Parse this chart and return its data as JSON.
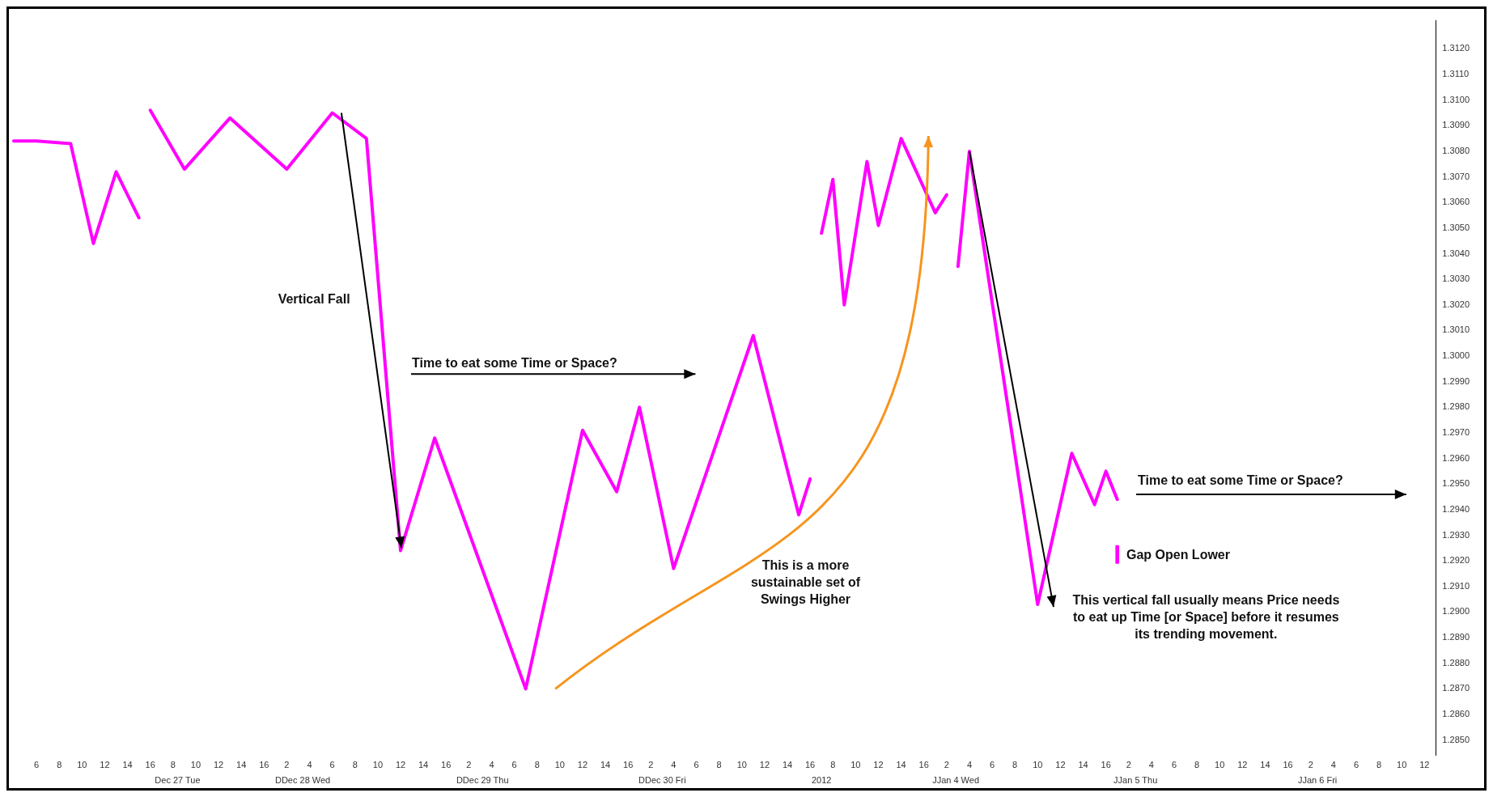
{
  "chart_data": {
    "type": "line",
    "categories": [
      null,
      null,
      "6",
      null,
      "8",
      null,
      "10",
      null,
      "12",
      null,
      "14",
      null,
      "16",
      null,
      "8",
      null,
      "10",
      null,
      "12",
      null,
      "14",
      null,
      "16",
      null,
      "2",
      null,
      "4",
      null,
      "6",
      null,
      "8",
      null,
      "10",
      null,
      "12",
      null,
      "14",
      null,
      "16",
      null,
      "2",
      null,
      "4",
      null,
      "6",
      null,
      "8",
      null,
      "10",
      null,
      "12",
      null,
      "14",
      null,
      "16",
      null,
      "2",
      null,
      "4",
      null,
      "6",
      null,
      "8",
      null,
      "10",
      null,
      "12",
      null,
      "14",
      null,
      "16",
      null,
      "8",
      null,
      "10",
      null,
      "12",
      null,
      "14",
      null,
      "16",
      null,
      "2",
      null,
      "4",
      null,
      "6",
      null,
      "8",
      null,
      "10",
      null,
      "12",
      null,
      "14",
      null,
      "16",
      null,
      "2",
      null,
      "4",
      null,
      "6",
      null,
      "8",
      null,
      "10",
      null,
      "12",
      null,
      "14",
      null,
      "16",
      null,
      "2",
      null,
      "4",
      null,
      "6",
      null,
      "8",
      null,
      "10",
      null,
      "12",
      null
    ],
    "series": [
      {
        "color": "#ff00ff",
        "values": [
          1.3084,
          null,
          1.3084,
          null,
          null,
          1.3083,
          null,
          1.3044,
          null,
          1.3072,
          null,
          1.3054,
          null,
          null,
          null,
          null,
          null,
          null,
          null,
          null,
          null,
          null,
          null,
          null,
          null,
          null,
          null,
          null,
          null,
          null,
          null,
          null,
          null,
          null,
          null,
          null,
          null,
          null,
          null,
          null,
          null,
          null,
          null,
          null,
          null,
          null,
          null,
          null,
          null,
          null,
          null,
          null,
          null,
          null,
          null,
          null,
          null,
          null,
          null,
          null,
          null,
          null,
          null,
          null,
          null,
          null,
          null,
          null,
          null,
          null,
          null,
          null,
          null,
          null,
          null,
          null,
          null,
          null,
          null,
          null,
          null,
          null,
          null,
          null,
          null,
          null,
          null,
          null,
          null,
          null,
          null,
          null,
          null,
          null,
          null,
          null,
          null,
          null,
          null,
          null,
          null,
          null,
          null,
          null,
          null,
          null,
          null,
          null,
          null,
          null,
          null,
          null,
          null,
          null,
          null,
          null,
          null,
          null,
          null,
          null,
          null,
          null,
          null,
          null,
          null,
          null
        ]
      },
      {
        "color": "#ff00ff",
        "values": [
          null,
          null,
          null,
          null,
          null,
          null,
          null,
          null,
          null,
          null,
          null,
          null,
          1.3096,
          null,
          null,
          1.3073,
          null,
          null,
          null,
          1.3093,
          null,
          null,
          null,
          null,
          1.3073,
          null,
          null,
          null,
          1.3095,
          null,
          null,
          1.3085,
          null,
          null,
          1.2924,
          null,
          null,
          1.2968,
          null,
          null,
          null,
          null,
          null,
          null,
          null,
          1.287,
          null,
          null,
          null,
          null,
          1.2971,
          null,
          null,
          1.2947,
          null,
          1.298,
          null,
          null,
          1.2917,
          null,
          null,
          null,
          null,
          null,
          null,
          1.3008,
          null,
          null,
          null,
          1.2938,
          1.2952,
          null,
          null,
          null,
          null,
          null,
          null,
          null,
          null,
          null,
          null,
          null,
          null,
          null,
          null,
          null,
          null,
          null,
          null,
          null,
          null,
          null,
          null,
          null,
          null,
          null,
          null,
          null,
          null,
          null,
          null,
          null,
          null,
          null,
          null,
          null,
          null,
          null,
          null,
          null,
          null,
          null,
          null,
          null,
          null,
          null,
          null,
          null,
          null,
          null,
          null,
          null,
          null,
          null,
          null,
          null
        ]
      },
      {
        "color": "#ff00ff",
        "values": [
          null,
          null,
          null,
          null,
          null,
          null,
          null,
          null,
          null,
          null,
          null,
          null,
          null,
          null,
          null,
          null,
          null,
          null,
          null,
          null,
          null,
          null,
          null,
          null,
          null,
          null,
          null,
          null,
          null,
          null,
          null,
          null,
          null,
          null,
          null,
          null,
          null,
          null,
          null,
          null,
          null,
          null,
          null,
          null,
          null,
          null,
          null,
          null,
          null,
          null,
          null,
          null,
          null,
          null,
          null,
          null,
          null,
          null,
          null,
          null,
          null,
          null,
          null,
          null,
          null,
          null,
          null,
          null,
          null,
          null,
          null,
          1.3048,
          1.3069,
          1.302,
          null,
          1.3076,
          1.3051,
          null,
          1.3085,
          null,
          null,
          1.3056,
          1.3063,
          null,
          null,
          null,
          null,
          null,
          null,
          null,
          null,
          null,
          null,
          null,
          null,
          null,
          null,
          null,
          null,
          null,
          null,
          null,
          null,
          null,
          null,
          null,
          null,
          null,
          null,
          null,
          null,
          null,
          null,
          null,
          null,
          null,
          null,
          null,
          null,
          null,
          null,
          null,
          null,
          null,
          null,
          null
        ]
      },
      {
        "color": "#ff00ff",
        "values": [
          null,
          null,
          null,
          null,
          null,
          null,
          null,
          null,
          null,
          null,
          null,
          null,
          null,
          null,
          null,
          null,
          null,
          null,
          null,
          null,
          null,
          null,
          null,
          null,
          null,
          null,
          null,
          null,
          null,
          null,
          null,
          null,
          null,
          null,
          null,
          null,
          null,
          null,
          null,
          null,
          null,
          null,
          null,
          null,
          null,
          null,
          null,
          null,
          null,
          null,
          null,
          null,
          null,
          null,
          null,
          null,
          null,
          null,
          null,
          null,
          null,
          null,
          null,
          null,
          null,
          null,
          null,
          null,
          null,
          null,
          null,
          null,
          null,
          null,
          null,
          null,
          null,
          null,
          null,
          null,
          null,
          null,
          null,
          1.3035,
          1.308,
          null,
          null,
          null,
          null,
          null,
          1.2903,
          null,
          null,
          1.2962,
          null,
          1.2942,
          1.2955,
          1.2944,
          null,
          null,
          null,
          null,
          null,
          null,
          null,
          null,
          null,
          null,
          null,
          null,
          null,
          null,
          null,
          null,
          null,
          null,
          null,
          null,
          null,
          null,
          null,
          null,
          null,
          null,
          null,
          null
        ]
      },
      {
        "type": "bar",
        "color": "#ff00ff",
        "values": [
          null,
          null,
          null,
          null,
          null,
          null,
          null,
          null,
          null,
          null,
          null,
          null,
          null,
          null,
          null,
          null,
          null,
          null,
          null,
          null,
          null,
          null,
          null,
          null,
          null,
          null,
          null,
          null,
          null,
          null,
          null,
          null,
          null,
          null,
          null,
          null,
          null,
          null,
          null,
          null,
          null,
          null,
          null,
          null,
          null,
          null,
          null,
          null,
          null,
          null,
          null,
          null,
          null,
          null,
          null,
          null,
          null,
          null,
          null,
          null,
          null,
          null,
          null,
          null,
          null,
          null,
          null,
          null,
          null,
          null,
          null,
          null,
          null,
          null,
          null,
          null,
          null,
          null,
          null,
          null,
          null,
          null,
          null,
          null,
          null,
          null,
          null,
          null,
          null,
          null,
          null,
          null,
          null,
          null,
          null,
          null,
          null,
          0.0007,
          null,
          null,
          null,
          null,
          null,
          null,
          null,
          null,
          null,
          null,
          null,
          null,
          null,
          null,
          null,
          null,
          null,
          null,
          null,
          null,
          null,
          null,
          null,
          null,
          null,
          null,
          null,
          null
        ],
        "base": [
          null,
          null,
          null,
          null,
          null,
          null,
          null,
          null,
          null,
          null,
          null,
          null,
          null,
          null,
          null,
          null,
          null,
          null,
          null,
          null,
          null,
          null,
          null,
          null,
          null,
          null,
          null,
          null,
          null,
          null,
          null,
          null,
          null,
          null,
          null,
          null,
          null,
          null,
          null,
          null,
          null,
          null,
          null,
          null,
          null,
          null,
          null,
          null,
          null,
          null,
          null,
          null,
          null,
          null,
          null,
          null,
          null,
          null,
          null,
          null,
          null,
          null,
          null,
          null,
          null,
          null,
          null,
          null,
          null,
          null,
          null,
          null,
          null,
          null,
          null,
          null,
          null,
          null,
          null,
          null,
          null,
          null,
          null,
          null,
          null,
          null,
          null,
          null,
          null,
          null,
          null,
          null,
          null,
          null,
          null,
          null,
          null,
          1.2919,
          null,
          null,
          null,
          null,
          null,
          null,
          null,
          null,
          null,
          null,
          null,
          null,
          null,
          null,
          null,
          null,
          null,
          null,
          null,
          null,
          null,
          null,
          null,
          null,
          null,
          null,
          null,
          null
        ]
      }
    ],
    "marker": "none",
    "line_style": "solid",
    "grid": false,
    "legend": false,
    "ylim": [
      1.2844,
      1.3131
    ],
    "yticks": [
      {
        "value": 1.285,
        "label": "1.2850"
      },
      {
        "value": 1.286,
        "label": "1.2860"
      },
      {
        "value": 1.287,
        "label": "1.2870"
      },
      {
        "value": 1.288,
        "label": "1.2880"
      },
      {
        "value": 1.289,
        "label": "1.2890"
      },
      {
        "value": 1.29,
        "label": "1.2900"
      },
      {
        "value": 1.291,
        "label": "1.2910"
      },
      {
        "value": 1.292,
        "label": "1.2920"
      },
      {
        "value": 1.293,
        "label": "1.2930"
      },
      {
        "value": 1.294,
        "label": "1.2940"
      },
      {
        "value": 1.295,
        "label": "1.2950"
      },
      {
        "value": 1.296,
        "label": "1.2960"
      },
      {
        "value": 1.297,
        "label": "1.2970"
      },
      {
        "value": 1.298,
        "label": "1.2980"
      },
      {
        "value": 1.299,
        "label": "1.2990"
      },
      {
        "value": 1.3,
        "label": "1.3000"
      },
      {
        "value": 1.301,
        "label": "1.3010"
      },
      {
        "value": 1.302,
        "label": "1.3020"
      },
      {
        "value": 1.303,
        "label": "1.3030"
      },
      {
        "value": 1.304,
        "label": "1.3040"
      },
      {
        "value": 1.305,
        "label": "1.3050"
      },
      {
        "value": 1.306,
        "label": "1.3060"
      },
      {
        "value": 1.307,
        "label": "1.3070"
      },
      {
        "value": 1.308,
        "label": "1.3080"
      },
      {
        "value": 1.309,
        "label": "1.3090"
      },
      {
        "value": 1.31,
        "label": "1.3100"
      },
      {
        "value": 1.311,
        "label": "1.3110"
      },
      {
        "value": 1.312,
        "label": "1.3120"
      }
    ],
    "annotations": [
      "Vertical Fall",
      "Time to eat some Time or Space?",
      "This is a more sustainable set of Swings Higher",
      "Gap Open Lower",
      "This vertical fall usually means Price needs to eat up Time [or Space] before it resumes its trending movement.",
      "Time to eat some Time or Space?",
      "Dec 27 Tue",
      "DDec 28 Wed",
      "DDec 29 Thu",
      "DDec 30 Fri",
      "2012",
      "JJan 4 Wed",
      "JJan 5 Thu",
      "JJan 6 Fri"
    ]
  }
}
